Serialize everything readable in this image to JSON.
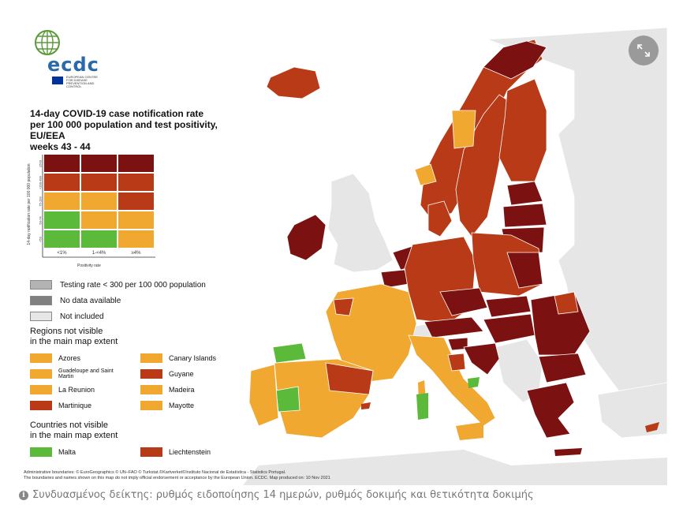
{
  "logo": {
    "text": "ecdc",
    "subtitle": "EUROPEAN CENTRE FOR DISEASE PREVENTION AND CONTROL"
  },
  "title": {
    "line1": "14-day COVID-19 case notification rate",
    "line2": "per 100 000 population and test positivity, EU/EEA",
    "line3": "weeks 43 - 44"
  },
  "matrix": {
    "y_axis_label": "14-day notification rate per 100 000 population",
    "y_ticks": [
      "≥500",
      "<200-499",
      "75-199",
      "50-74",
      "<50"
    ],
    "x_ticks": [
      "<1%",
      "1-<4%",
      "≥4%"
    ],
    "x_axis_label": "Positivity rate",
    "rows": [
      [
        "#7b1111",
        "#7b1111",
        "#7b1111"
      ],
      [
        "#b83a16",
        "#b83a16",
        "#b83a16"
      ],
      [
        "#f0a830",
        "#f0a830",
        "#b83a16"
      ],
      [
        "#5cba3a",
        "#f0a830",
        "#f0a830"
      ],
      [
        "#5cba3a",
        "#5cba3a",
        "#f0a830"
      ]
    ]
  },
  "legend": [
    {
      "label": "Testing rate < 300 per 100 000 population",
      "color": "#b3b3b3"
    },
    {
      "label": "No data available",
      "color": "#808080"
    },
    {
      "label": "Not included",
      "color": "#e6e6e6"
    }
  ],
  "regions": {
    "title_line1": "Regions not visible",
    "title_line2": "in the main map extent",
    "items": [
      {
        "label": "Azores",
        "color": "#f0a830"
      },
      {
        "label": "Canary Islands",
        "color": "#f0a830"
      },
      {
        "label": "Guadeloupe and Saint Martin",
        "color": "#f0a830"
      },
      {
        "label": "Guyane",
        "color": "#b83a16"
      },
      {
        "label": "La Reunion",
        "color": "#f0a830"
      },
      {
        "label": "Madeira",
        "color": "#f0a830"
      },
      {
        "label": "Martinique",
        "color": "#b83a16"
      },
      {
        "label": "Mayotte",
        "color": "#f0a830"
      }
    ]
  },
  "countries": {
    "title_line1": "Countries not visible",
    "title_line2": "in the main map extent",
    "items": [
      {
        "label": "Malta",
        "color": "#5cba3a"
      },
      {
        "label": "Liechtenstein",
        "color": "#b83a16"
      }
    ]
  },
  "footer": {
    "line1": "Administrative boundaries: © EuroGeographics © UN–FAO © Turkstat.©Kartverket©Instituto Nacional de Estatística - Statistics Portugal.",
    "line2": "The boundaries and names shown on this map do not imply official endorsement or acceptance by the European Union. ECDC. Map produced on: 10 Nov 2021"
  },
  "caption": "Συνδυασμένος δείκτης: ρυθμός ειδοποίησης 14 ημερών, ρυθμός δοκιμής και θετικότητα δοκιμής",
  "colors": {
    "dark_red": "#7b1111",
    "red": "#b83a16",
    "orange": "#f0a830",
    "green": "#5cba3a",
    "not_included": "#e6e6e6",
    "sea": "#ffffff"
  }
}
